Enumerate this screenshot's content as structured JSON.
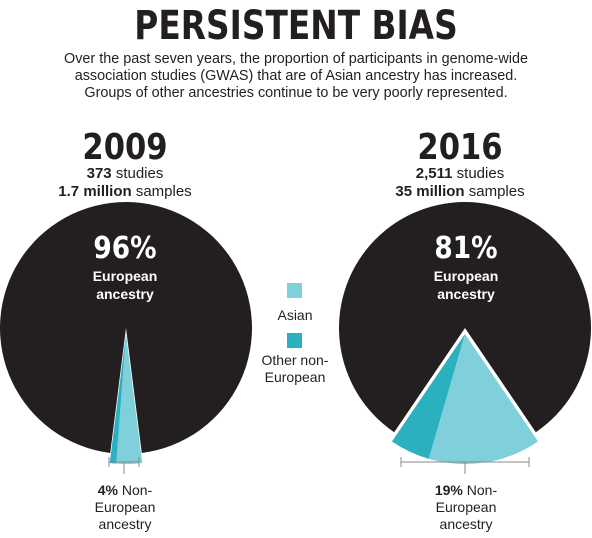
{
  "header": {
    "title": "PERSISTENT BIAS",
    "subtitle_lines": [
      "Over the past seven years, the proportion of participants in genome-wide",
      "association studies (GWAS) that are of Asian ancestry has increased.",
      "Groups of other ancestries continue to be very poorly represented."
    ]
  },
  "legend": {
    "asian": "Asian",
    "other_line1": "Other non-",
    "other_line2": "European"
  },
  "colors": {
    "european": "#231f20",
    "asian": "#7fd0da",
    "other": "#2bb0bf",
    "text": "#231f20"
  },
  "chart_data": [
    {
      "type": "pie",
      "year": "2009",
      "studies_count": "373",
      "studies_word": "studies",
      "samples_count": "1.7 million",
      "samples_word": "samples",
      "center_percent": "96%",
      "center_label_line1": "European",
      "center_label_line2": "ancestry",
      "bracket_percent": "4%",
      "bracket_line1": "Non-",
      "bracket_line2": "European",
      "bracket_line3": "ancestry",
      "slices": [
        {
          "label": "European",
          "value": 96
        },
        {
          "label": "Asian",
          "value": 3.2
        },
        {
          "label": "Other non-European",
          "value": 0.8
        }
      ]
    },
    {
      "type": "pie",
      "year": "2016",
      "studies_count": "2,511",
      "studies_word": "studies",
      "samples_count": "35 million",
      "samples_word": "samples",
      "center_percent": "81%",
      "center_label_line1": "European",
      "center_label_line2": "ancestry",
      "bracket_percent": "19%",
      "bracket_line1": "Non-",
      "bracket_line2": "European",
      "bracket_line3": "ancestry",
      "slices": [
        {
          "label": "European",
          "value": 81
        },
        {
          "label": "Asian",
          "value": 14
        },
        {
          "label": "Other non-European",
          "value": 5
        }
      ]
    }
  ]
}
